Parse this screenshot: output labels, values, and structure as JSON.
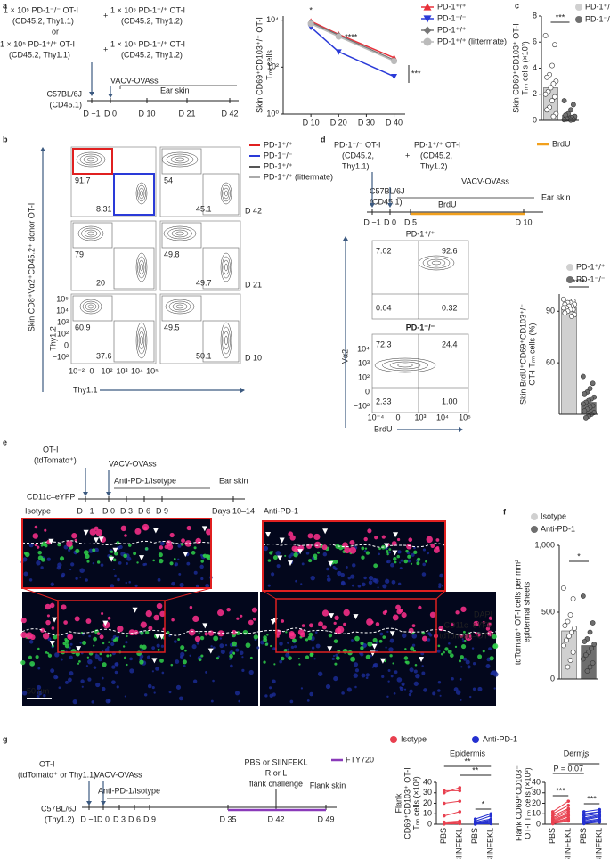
{
  "figure": {
    "labels": [
      "a",
      "b",
      "c",
      "d",
      "e",
      "f",
      "g"
    ],
    "a": {
      "schematic": [
        "1 × 10⁵ PD-1⁻/⁻ OT-I",
        "(CD45.2, Thy1.1)",
        "+",
        "1 × 10⁵ PD-1⁺/⁺ OT-I",
        "(CD45.2, Thy1.2)",
        "or",
        "1 × 10⁵ PD-1⁺/⁺ OT-I",
        "(CD45.2, Thy1.1)",
        "+",
        "1 × 10⁵ PD-1⁺/⁺ OT-I",
        "(CD45.2, Thy1.2)",
        "VACV-OVAss",
        "Ear skin",
        "C57BL/6J",
        "(CD45.1)",
        "D −1",
        "D 0",
        "D 10",
        "D 21",
        "D 42"
      ]
    },
    "b": {
      "legend": [
        "PD-1⁺/⁺",
        "PD-1⁻/⁻",
        "PD-1⁺/⁺",
        "PD-1⁺/⁺ (littermate)"
      ],
      "days": [
        "D 42",
        "D 21",
        "D 10"
      ],
      "numbers": [
        [
          "91.7",
          "8.31",
          "54",
          "45.1"
        ],
        [
          "79",
          "20",
          "49.8",
          "49.7"
        ],
        [
          "60.9",
          "37.6",
          "49.5",
          "50.1"
        ]
      ],
      "ylabel": "Skin CD8⁺Vα2⁺CD45.2⁺ donor OT-I",
      "y_axis": "Thy1.2",
      "x_axis": "Thy1.1",
      "yticks": [
        "10⁵",
        "10⁴",
        "10³",
        "10²",
        "0",
        "−10²"
      ],
      "xticks": [
        "10⁻²",
        "0",
        "10²",
        "10³",
        "10⁴",
        "10⁵"
      ]
    },
    "d": {
      "schematic": [
        "PD-1⁻/⁻ OT-I",
        "(CD45.2,",
        "Thy1.1)",
        "+",
        "PD-1⁺/⁺ OT-I",
        "(CD45.2,",
        "Thy1.2)",
        "VACV-OVAss",
        "C57BL/6J",
        "(CD45.1)",
        "Ear skin",
        "BrdU",
        "D −1",
        "D 0",
        "D 5",
        "D 10"
      ],
      "legend": "BrdU",
      "titles": [
        "PD-1⁺/⁺",
        "PD-1⁻/⁻"
      ],
      "numbers": [
        [
          "7.02",
          "92.6",
          "0.04",
          "0.32"
        ],
        [
          "72.3",
          "24.4",
          "2.33",
          "1.00"
        ]
      ],
      "y_axis": "Vα2",
      "x_axis": "BrdU",
      "yticks": [
        "10⁴",
        "10³",
        "10²",
        "0",
        "−10²"
      ],
      "xticks": [
        "10⁻⁴",
        "0",
        "10³",
        "10⁴",
        "10⁵"
      ]
    },
    "e": {
      "schematic": [
        "OT-I",
        "(tdTomato⁺)",
        "VACV-OVAss",
        "Anti-PD-1/isotype",
        "CD11c–eYFP",
        "Ear skin",
        "D −1",
        "D 0",
        "D 3",
        "D 6",
        "D 9",
        "Days 10–14"
      ],
      "images": [
        "Isotype",
        "Anti-PD-1"
      ],
      "channels": [
        "DAPI",
        "CD11c–eYFP",
        "tdTomato–OT-I"
      ],
      "scale": "50 µm"
    },
    "g": {
      "legend": [
        "Isotype",
        "Anti-PD-1"
      ],
      "schematic": [
        "OT-I",
        "(tdTomato⁺ or Thy1.1)",
        "VACV-OVAss",
        "Anti-PD-1/isotype",
        "C57BL/6J",
        "(Thy1.2)",
        "PBS or SIINFEKL",
        "R or L",
        "flank challenge",
        "Flank skin",
        "FTY720",
        "D −1",
        "D 0",
        "D 3",
        "D 6",
        "D 9",
        "D 35",
        "D 42",
        "D 49"
      ]
    }
  },
  "chart_data": [
    {
      "type": "line",
      "ylabel": [
        "Skin CD69⁺CD103⁺/⁻ OT-I",
        "Tᵣₘ cells"
      ],
      "log_y": true,
      "x": [
        10,
        20,
        40
      ],
      "xlim": [
        0,
        44
      ],
      "xticks": [
        {
          "value": 10,
          "label": "D 10"
        },
        {
          "value": 20,
          "label": "D 20"
        },
        {
          "value": 30,
          "label": "D 30"
        },
        {
          "value": 40,
          "label": "D 40"
        }
      ],
      "ylim": [
        1,
        15000
      ],
      "yticks": [
        {
          "value": 1,
          "label": "10⁰"
        },
        {
          "value": 100,
          "label": "10²"
        },
        {
          "value": 10000,
          "label": "10⁴"
        }
      ],
      "series": [
        {
          "name": "PD-1⁺/⁺",
          "color": "#e8303a",
          "marker": "triangle-up",
          "values": [
            9000,
            2500,
            250
          ]
        },
        {
          "name": "PD-1⁻/⁻",
          "color": "#2a3ad8",
          "marker": "triangle-down",
          "values": [
            5000,
            450,
            40
          ]
        },
        {
          "name": "PD-1⁺/⁺",
          "color": "#777777",
          "marker": "diamond",
          "values": [
            8000,
            2300,
            200
          ]
        },
        {
          "name": "PD-1⁺/⁺ (littermate)",
          "color": "#bbbbbb",
          "marker": "circle",
          "values": [
            7000,
            2000,
            180
          ]
        }
      ],
      "annotations": [
        "*",
        "****",
        "***"
      ]
    },
    {
      "type": "bar",
      "ylabel": [
        "Skin CD69⁺CD103⁺ OT-I",
        "Tᵣₘ cells (×10³)"
      ],
      "categories": [
        "PD-1⁺/⁺",
        "PD-1⁻/⁻"
      ],
      "colors": [
        "#d0d0d0",
        "#707070"
      ],
      "values": [
        2.5,
        0.4
      ],
      "points": [
        [
          6.5,
          5.8,
          4.2,
          3.5,
          3.3,
          3.0,
          2.8,
          2.5,
          2.2,
          2.0,
          1.8,
          1.5,
          1.0,
          0.8,
          0.5,
          0.3
        ],
        [
          1.5,
          1.2,
          0.8,
          0.5,
          0.4,
          0.3,
          0.2,
          0.1,
          0.1,
          0.05,
          0.05,
          0.02
        ]
      ],
      "ylim": [
        0,
        8
      ],
      "yticks": [
        0,
        2,
        4,
        6,
        8
      ],
      "annotations": [
        "***"
      ]
    },
    {
      "type": "bar",
      "ylabel": [
        "Skin BrdU⁺CD69⁺CD103⁺/⁻",
        "OT-I Tᵣₘ cells (%)"
      ],
      "categories": [
        "PD-1⁺/⁺",
        "PD-1⁻/⁻"
      ],
      "colors": [
        "#d0d0d0",
        "#6e6e6e"
      ],
      "values": [
        92,
        37
      ],
      "points": [
        [
          97,
          96,
          95,
          95,
          94,
          94,
          93,
          93,
          92,
          92,
          91,
          91,
          90,
          89,
          88,
          87
        ],
        [
          52,
          48,
          45,
          43,
          42,
          40,
          39,
          38,
          37,
          36,
          35,
          34,
          33,
          32,
          31,
          30,
          29,
          28
        ]
      ],
      "ylim": [
        30,
        100
      ],
      "yticks": [
        60,
        90
      ],
      "annotations": [
        "****"
      ]
    },
    {
      "type": "bar",
      "ylabel": [
        "tdTomato⁺ OT-I cells per mm²",
        "epidermal sheets"
      ],
      "categories": [
        "Isotype",
        "Anti-PD-1"
      ],
      "colors": [
        "#d0d0d0",
        "#6e6e6e"
      ],
      "values": [
        360,
        250
      ],
      "points": [
        [
          680,
          600,
          480,
          430,
          400,
          380,
          350,
          320,
          290,
          250,
          200,
          140,
          90
        ],
        [
          620,
          420,
          350,
          300,
          280,
          260,
          230,
          200,
          180,
          150,
          120,
          90,
          60
        ]
      ],
      "ylim": [
        0,
        1000
      ],
      "yticks": [
        0,
        500,
        {
          "value": 1000,
          "label": "1,000"
        }
      ],
      "annotations": [
        "*"
      ]
    },
    {
      "type": "paired",
      "title": "Epidermis",
      "ylabel": [
        "Flank",
        "CD69⁺CD103⁺ OT-I",
        "Tᵣₘ cells (×10³)"
      ],
      "categories": [
        "PBS",
        "SIINFEKL",
        "PBS",
        "SIINFEKL"
      ],
      "ylim": [
        0,
        40
      ],
      "yticks": [
        0,
        10,
        20,
        30,
        40
      ],
      "series": [
        {
          "color": "#e8404f",
          "pbs": [
            32,
            30,
            20,
            8,
            2,
            1,
            0.5,
            0.5,
            0.2
          ],
          "siinfekl": [
            32,
            35,
            22,
            12,
            3,
            2,
            1,
            1,
            0.5
          ]
        },
        {
          "color": "#2430d0",
          "pbs": [
            5,
            3,
            2,
            1,
            1,
            0.5,
            0.3,
            0.2,
            0.1
          ],
          "siinfekl": [
            10,
            8,
            5,
            4,
            3,
            2,
            1,
            1,
            0.5
          ]
        }
      ],
      "annotations": [
        "**",
        "**",
        "*"
      ]
    },
    {
      "type": "paired",
      "title": "Dermis",
      "ylabel": [
        "Flank CD69⁺CD103⁻",
        "OT-I Tᵣₘ cells (×10³)"
      ],
      "categories": [
        "PBS",
        "SIINFEKL",
        "PBS",
        "SIINFEKL"
      ],
      "ylim": [
        0,
        40
      ],
      "yticks": [
        0,
        10,
        20,
        30,
        40
      ],
      "series": [
        {
          "color": "#e8404f",
          "pbs": [
            12,
            10,
            8,
            6,
            5,
            4,
            3,
            2,
            1.5,
            1,
            0.5,
            0.5
          ],
          "siinfekl": [
            22,
            18,
            15,
            14,
            12,
            10,
            9,
            8,
            6,
            5,
            4,
            3
          ]
        },
        {
          "color": "#2430d0",
          "pbs": [
            12,
            10,
            9,
            8,
            6,
            5,
            4,
            3,
            2,
            1.5,
            1,
            0.5
          ],
          "siinfekl": [
            14,
            12,
            12,
            10,
            9,
            8,
            7,
            5,
            4,
            3,
            3,
            2
          ]
        }
      ],
      "annotations": [
        "P = 0.07",
        "**",
        "***",
        "***"
      ]
    }
  ]
}
